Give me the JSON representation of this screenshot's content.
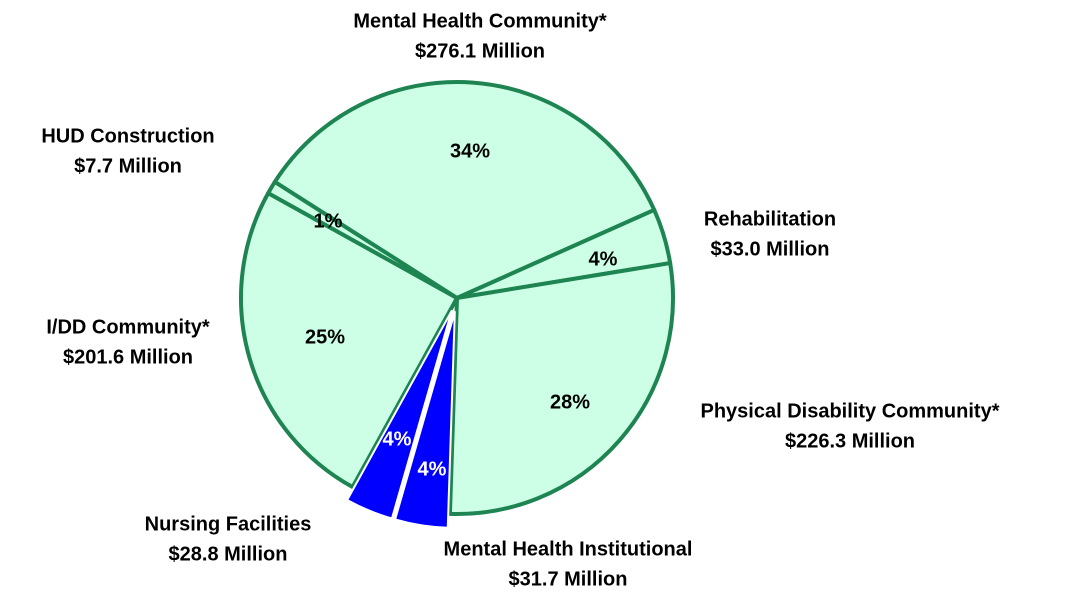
{
  "chart_data": {
    "type": "pie",
    "categories": [
      "Mental Health Community*",
      "Rehabilitation",
      "Physical Disability Community*",
      "Mental Health Institutional",
      "Nursing Facilities",
      "I/DD Community*",
      "HUD Construction"
    ],
    "values": [
      276.1,
      33.0,
      226.3,
      31.7,
      28.8,
      201.6,
      7.7
    ],
    "value_labels": [
      "$276.1 Million",
      "$33.0 Million",
      "$226.3 Million",
      "$31.7 Million",
      "$28.8 Million",
      "$201.6 Million",
      "$7.7 Million"
    ],
    "percents": [
      34,
      4,
      28,
      4,
      4,
      25,
      1
    ],
    "percent_labels": [
      "34%",
      "4%",
      "28%",
      "4%",
      "4%",
      "25%",
      "1%"
    ],
    "colors": [
      "#ccffe5",
      "#ccffe5",
      "#ccffe5",
      "#0000ff",
      "#0000ff",
      "#ccffe5",
      "#ccffe5"
    ],
    "exploded": [
      false,
      false,
      false,
      true,
      true,
      false,
      false
    ]
  }
}
